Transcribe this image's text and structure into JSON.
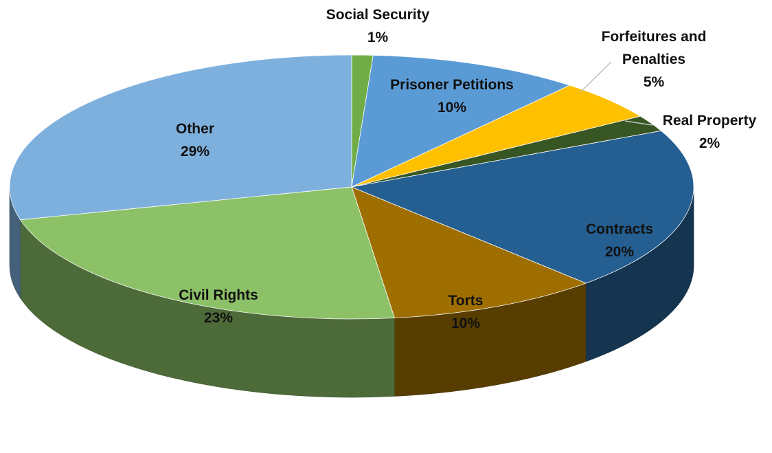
{
  "chart_data": {
    "type": "pie",
    "title": "",
    "style": "3d-exploded-perspective",
    "legend": "none",
    "slices": [
      {
        "label": "Social Security",
        "value": 1,
        "value_label": "1%",
        "color": "#70AD47"
      },
      {
        "label": "Prisoner Petitions",
        "value": 10,
        "value_label": "10%",
        "color": "#5B9BD5"
      },
      {
        "label": "Forfeitures and Penalties",
        "value": 5,
        "value_label": "5%",
        "color": "#FFC000"
      },
      {
        "label": "Real Property",
        "value": 2,
        "value_label": "2%",
        "color": "#375623"
      },
      {
        "label": "Contracts",
        "value": 20,
        "value_label": "20%",
        "color": "#255E91"
      },
      {
        "label": "Torts",
        "value": 10,
        "value_label": "10%",
        "color": "#9E6F00"
      },
      {
        "label": "Civil Rights",
        "value": 23,
        "value_label": "23%",
        "color": "#8CC168"
      },
      {
        "label": "Other",
        "value": 29,
        "value_label": "29%",
        "color": "#7EB0DE"
      }
    ]
  }
}
